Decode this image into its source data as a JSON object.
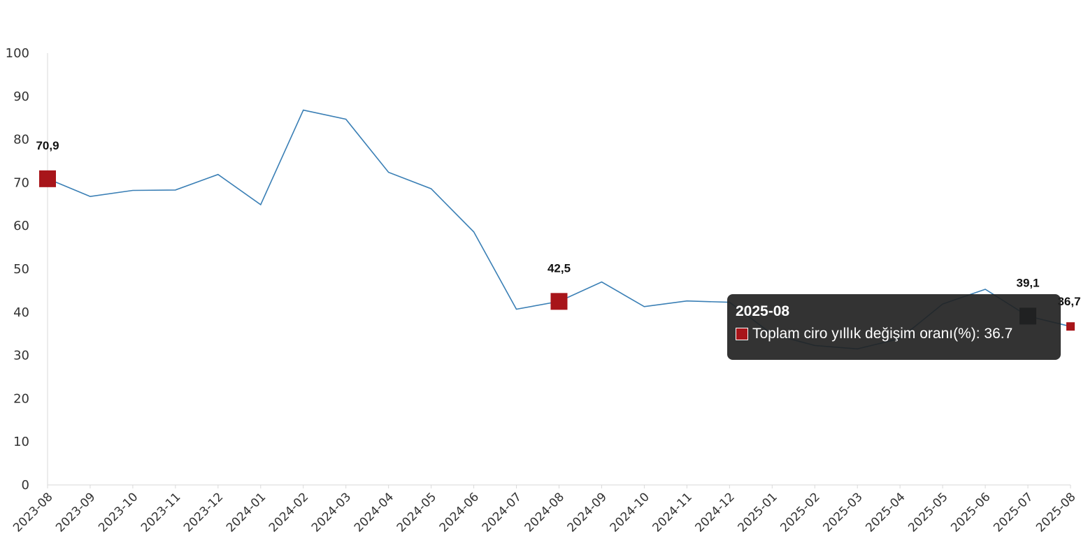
{
  "chart_data": {
    "type": "line",
    "categories": [
      "2023-08",
      "2023-09",
      "2023-10",
      "2023-11",
      "2023-12",
      "2024-01",
      "2024-02",
      "2024-03",
      "2024-04",
      "2024-05",
      "2024-06",
      "2024-07",
      "2024-08",
      "2024-09",
      "2024-10",
      "2024-11",
      "2024-12",
      "2025-01",
      "2025-02",
      "2025-03",
      "2025-04",
      "2025-05",
      "2025-06",
      "2025-07",
      "2025-08"
    ],
    "series": [
      {
        "name": "Toplam ciro yıllık değişim oranı(%)",
        "values": [
          70.9,
          66.8,
          68.2,
          68.3,
          71.9,
          64.9,
          86.8,
          84.7,
          72.4,
          68.6,
          58.6,
          40.7,
          42.5,
          47.0,
          41.3,
          42.6,
          42.3,
          34.9,
          32.3,
          31.5,
          33.9,
          41.9,
          45.3,
          39.1,
          36.7
        ]
      }
    ],
    "highlighted_points": [
      {
        "category": "2023-08",
        "value": 70.9,
        "label": "70,9"
      },
      {
        "category": "2024-08",
        "value": 42.5,
        "label": "42,5"
      },
      {
        "category": "2025-07",
        "value": 39.1,
        "label": "39,1"
      },
      {
        "category": "2025-08",
        "value": 36.7,
        "label": "36,7"
      }
    ],
    "yticks": [
      "0",
      "10",
      "20",
      "30",
      "40",
      "50",
      "60",
      "70",
      "80",
      "90",
      "100"
    ],
    "ylim": [
      0,
      100
    ],
    "grid": false,
    "legend": "none",
    "colors": {
      "line": "#3a7fb5",
      "marker": "#a8151a",
      "marker_hover": "#0e1a26",
      "axis": "#d9d9d9"
    }
  },
  "tooltip": {
    "title": "2025-08",
    "series_name": "Toplam ciro yıllık değişim oranı(%)",
    "value": "36.7",
    "text": "Toplam ciro yıllık değişim oranı(%): 36.7",
    "swatch_color": "#a8151a"
  }
}
